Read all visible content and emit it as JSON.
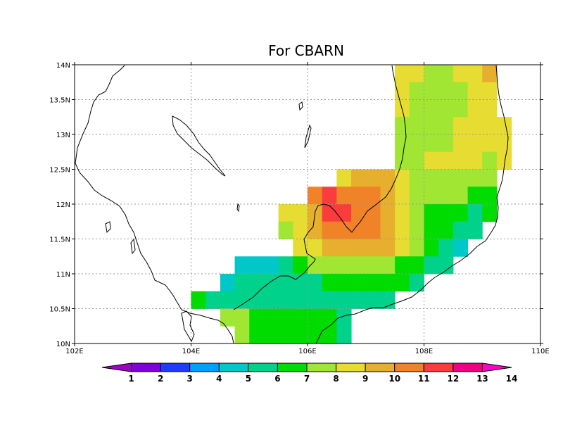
{
  "chart_data": {
    "type": "heatmap",
    "title": "For CBARN",
    "xlabel": "",
    "ylabel": "",
    "xlim": [
      102,
      110
    ],
    "ylim": [
      10,
      14
    ],
    "grid": true,
    "grid_ticks_x": [
      104,
      106,
      108
    ],
    "grid_ticks_y": [
      10.5,
      11,
      11.5,
      12,
      12.5,
      13,
      13.5
    ],
    "x_tick_labels": [
      {
        "value": 102,
        "label": "102E"
      },
      {
        "value": 104,
        "label": "104E"
      },
      {
        "value": 106,
        "label": "106E"
      },
      {
        "value": 108,
        "label": "108E"
      },
      {
        "value": 110,
        "label": "110E"
      }
    ],
    "y_tick_labels": [
      {
        "value": 10,
        "label": "10N"
      },
      {
        "value": 10.5,
        "label": "10.5N"
      },
      {
        "value": 11,
        "label": "11N"
      },
      {
        "value": 11.5,
        "label": "11.5N"
      },
      {
        "value": 12,
        "label": "12N"
      },
      {
        "value": 12.5,
        "label": "12.5N"
      },
      {
        "value": 13,
        "label": "13N"
      },
      {
        "value": 13.5,
        "label": "13.5N"
      },
      {
        "value": 14,
        "label": "14N"
      }
    ],
    "grid_cell_deg": 0.25,
    "rows": [
      {
        "lat": 13.75,
        "cells": [
          [
            107.5,
            9
          ],
          [
            107.75,
            9
          ],
          [
            108.0,
            8
          ],
          [
            108.25,
            8
          ],
          [
            108.5,
            9
          ],
          [
            108.75,
            9
          ],
          [
            109.0,
            10
          ]
        ]
      },
      {
        "lat": 13.5,
        "cells": [
          [
            107.5,
            9
          ],
          [
            107.75,
            8
          ],
          [
            108.0,
            8
          ],
          [
            108.25,
            8
          ],
          [
            108.5,
            8
          ],
          [
            108.75,
            9
          ],
          [
            109.0,
            9
          ]
        ]
      },
      {
        "lat": 13.25,
        "cells": [
          [
            107.5,
            9
          ],
          [
            107.75,
            8
          ],
          [
            108.0,
            8
          ],
          [
            108.25,
            8
          ],
          [
            108.5,
            8
          ],
          [
            108.75,
            9
          ],
          [
            109.0,
            9
          ]
        ]
      },
      {
        "lat": 13.0,
        "cells": [
          [
            107.5,
            8
          ],
          [
            107.75,
            8
          ],
          [
            108.0,
            8
          ],
          [
            108.25,
            8
          ],
          [
            108.5,
            9
          ],
          [
            108.75,
            9
          ],
          [
            109.0,
            9
          ],
          [
            109.25,
            9
          ]
        ]
      },
      {
        "lat": 12.75,
        "cells": [
          [
            107.5,
            8
          ],
          [
            107.75,
            8
          ],
          [
            108.0,
            8
          ],
          [
            108.25,
            8
          ],
          [
            108.5,
            9
          ],
          [
            108.75,
            9
          ],
          [
            109.0,
            9
          ],
          [
            109.25,
            9
          ]
        ]
      },
      {
        "lat": 12.5,
        "cells": [
          [
            107.5,
            8
          ],
          [
            107.75,
            8
          ],
          [
            108.0,
            9
          ],
          [
            108.25,
            9
          ],
          [
            108.5,
            9
          ],
          [
            108.75,
            9
          ],
          [
            109.0,
            8
          ],
          [
            109.25,
            9
          ]
        ]
      },
      {
        "lat": 12.25,
        "cells": [
          [
            106.5,
            9
          ],
          [
            106.75,
            10
          ],
          [
            107.0,
            10
          ],
          [
            107.25,
            10
          ],
          [
            107.5,
            9
          ],
          [
            107.75,
            8
          ],
          [
            108.0,
            8
          ],
          [
            108.25,
            8
          ],
          [
            108.5,
            8
          ],
          [
            108.75,
            8
          ],
          [
            109.0,
            8
          ]
        ]
      },
      {
        "lat": 12.0,
        "cells": [
          [
            106.0,
            11
          ],
          [
            106.25,
            12
          ],
          [
            106.5,
            11
          ],
          [
            106.75,
            11
          ],
          [
            107.0,
            11
          ],
          [
            107.25,
            10
          ],
          [
            107.5,
            9
          ],
          [
            107.75,
            8
          ],
          [
            108.0,
            8
          ],
          [
            108.25,
            8
          ],
          [
            108.5,
            8
          ],
          [
            108.75,
            7
          ],
          [
            109.0,
            7
          ]
        ]
      },
      {
        "lat": 11.75,
        "cells": [
          [
            105.5,
            9
          ],
          [
            105.75,
            9
          ],
          [
            106.0,
            10
          ],
          [
            106.25,
            12
          ],
          [
            106.5,
            12
          ],
          [
            106.75,
            11
          ],
          [
            107.0,
            11
          ],
          [
            107.25,
            10
          ],
          [
            107.5,
            9
          ],
          [
            107.75,
            8
          ],
          [
            108.0,
            7
          ],
          [
            108.25,
            7
          ],
          [
            108.5,
            7
          ],
          [
            108.75,
            6
          ],
          [
            109.0,
            7
          ]
        ]
      },
      {
        "lat": 11.5,
        "cells": [
          [
            105.5,
            8
          ],
          [
            105.75,
            9
          ],
          [
            106.0,
            10
          ],
          [
            106.25,
            11
          ],
          [
            106.5,
            11
          ],
          [
            106.75,
            11
          ],
          [
            107.0,
            11
          ],
          [
            107.25,
            10
          ],
          [
            107.5,
            9
          ],
          [
            107.75,
            8
          ],
          [
            108.0,
            7
          ],
          [
            108.25,
            7
          ],
          [
            108.5,
            6
          ],
          [
            108.75,
            6
          ]
        ]
      },
      {
        "lat": 11.25,
        "cells": [
          [
            105.75,
            9
          ],
          [
            106.0,
            9
          ],
          [
            106.25,
            10
          ],
          [
            106.5,
            10
          ],
          [
            106.75,
            10
          ],
          [
            107.0,
            10
          ],
          [
            107.25,
            10
          ],
          [
            107.5,
            9
          ],
          [
            107.75,
            8
          ],
          [
            108.0,
            7
          ],
          [
            108.25,
            6
          ],
          [
            108.5,
            5
          ]
        ]
      },
      {
        "lat": 11.0,
        "cells": [
          [
            104.75,
            5
          ],
          [
            105.0,
            5
          ],
          [
            105.25,
            5
          ],
          [
            105.5,
            6
          ],
          [
            105.75,
            7
          ],
          [
            106.0,
            8
          ],
          [
            106.25,
            8
          ],
          [
            106.5,
            8
          ],
          [
            106.75,
            8
          ],
          [
            107.0,
            8
          ],
          [
            107.25,
            8
          ],
          [
            107.5,
            7
          ],
          [
            107.75,
            7
          ],
          [
            108.0,
            6
          ],
          [
            108.25,
            6
          ]
        ]
      },
      {
        "lat": 10.75,
        "cells": [
          [
            104.5,
            5
          ],
          [
            104.75,
            6
          ],
          [
            105.0,
            6
          ],
          [
            105.25,
            6
          ],
          [
            105.5,
            6
          ],
          [
            105.75,
            6
          ],
          [
            106.0,
            6
          ],
          [
            106.25,
            7
          ],
          [
            106.5,
            7
          ],
          [
            106.75,
            7
          ],
          [
            107.0,
            7
          ],
          [
            107.25,
            7
          ],
          [
            107.5,
            7
          ],
          [
            107.75,
            6
          ]
        ]
      },
      {
        "lat": 10.5,
        "cells": [
          [
            104.0,
            7
          ],
          [
            104.25,
            6
          ],
          [
            104.5,
            6
          ],
          [
            104.75,
            6
          ],
          [
            105.0,
            6
          ],
          [
            105.25,
            6
          ],
          [
            105.5,
            6
          ],
          [
            105.75,
            6
          ],
          [
            106.0,
            6
          ],
          [
            106.25,
            6
          ],
          [
            106.5,
            6
          ],
          [
            106.75,
            6
          ],
          [
            107.0,
            6
          ],
          [
            107.25,
            6
          ]
        ]
      },
      {
        "lat": 10.25,
        "cells": [
          [
            104.5,
            8
          ],
          [
            104.75,
            8
          ],
          [
            105.0,
            7
          ],
          [
            105.25,
            7
          ],
          [
            105.5,
            7
          ],
          [
            105.75,
            7
          ],
          [
            106.0,
            7
          ],
          [
            106.25,
            7
          ],
          [
            106.5,
            6
          ]
        ]
      },
      {
        "lat": 10.0,
        "cells": [
          [
            104.75,
            8
          ],
          [
            105.0,
            7
          ],
          [
            105.25,
            7
          ],
          [
            105.5,
            7
          ],
          [
            105.75,
            7
          ],
          [
            106.0,
            7
          ],
          [
            106.25,
            7
          ],
          [
            106.5,
            6
          ]
        ]
      }
    ],
    "colorbar": {
      "levels": [
        "1",
        "2",
        "3",
        "4",
        "5",
        "6",
        "7",
        "8",
        "9",
        "10",
        "11",
        "12",
        "13",
        "14"
      ],
      "colors": [
        "#a000c8",
        "#8200dc",
        "#1e3cff",
        "#00a0ff",
        "#00c8c8",
        "#00d28c",
        "#00dc00",
        "#a0e632",
        "#e6dc32",
        "#e6af2d",
        "#f08228",
        "#fa3c3c",
        "#f00082",
        "#ff00cc"
      ]
    }
  }
}
